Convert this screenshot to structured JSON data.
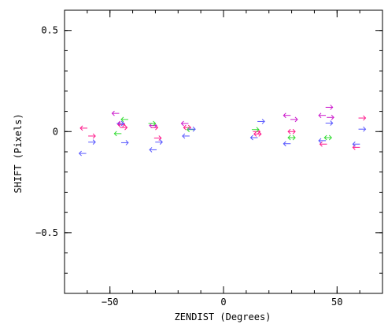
{
  "chart_data": {
    "type": "scatter",
    "marker": "arrow",
    "xlabel": "ZENDIST (Degrees)",
    "ylabel": "SHIFT (Pixels)",
    "xlim": [
      -70,
      70
    ],
    "ylim": [
      -0.8,
      0.6
    ],
    "xticks": [
      -50,
      0,
      50
    ],
    "xtick_labels": [
      "−50",
      "0",
      "50"
    ],
    "yticks": [
      -0.5,
      0,
      0.5
    ],
    "ytick_labels": [
      "−0.5",
      "0",
      "0.5"
    ],
    "x_minor_step": 10,
    "y_minor_step": 0.1,
    "grid": false,
    "series": [
      {
        "color": "#ff1a8c",
        "points": [
          {
            "x": -61.5,
            "y": 0.017,
            "dir": "left"
          },
          {
            "x": -58,
            "y": -0.022,
            "dir": "right"
          },
          {
            "x": -45,
            "y": 0.035,
            "dir": "both"
          },
          {
            "x": -44,
            "y": 0.02,
            "dir": "right"
          },
          {
            "x": -30.5,
            "y": 0.02,
            "dir": "right"
          },
          {
            "x": -29,
            "y": -0.032,
            "dir": "right"
          },
          {
            "x": -16,
            "y": 0.02,
            "dir": "both"
          },
          {
            "x": 14.5,
            "y": 0.0,
            "dir": "right"
          },
          {
            "x": 15,
            "y": -0.012,
            "dir": "both"
          },
          {
            "x": 30,
            "y": 0.0,
            "dir": "both"
          },
          {
            "x": 44,
            "y": -0.062,
            "dir": "left"
          },
          {
            "x": 58.5,
            "y": -0.078,
            "dir": "left"
          },
          {
            "x": 61,
            "y": 0.067,
            "dir": "right"
          }
        ]
      },
      {
        "color": "#cc1acc",
        "points": [
          {
            "x": -47.5,
            "y": 0.09,
            "dir": "left"
          },
          {
            "x": -45,
            "y": 0.04,
            "dir": "left"
          },
          {
            "x": -31,
            "y": 0.03,
            "dir": "both"
          },
          {
            "x": -17,
            "y": 0.04,
            "dir": "left"
          },
          {
            "x": 28,
            "y": 0.08,
            "dir": "left"
          },
          {
            "x": 31,
            "y": 0.06,
            "dir": "right"
          },
          {
            "x": 43.5,
            "y": 0.08,
            "dir": "left"
          },
          {
            "x": 46.5,
            "y": 0.12,
            "dir": "right"
          },
          {
            "x": 47,
            "y": 0.07,
            "dir": "right"
          }
        ]
      },
      {
        "color": "#33dd33",
        "points": [
          {
            "x": -46.5,
            "y": -0.01,
            "dir": "left"
          },
          {
            "x": -43.5,
            "y": 0.06,
            "dir": "left"
          },
          {
            "x": -31.5,
            "y": 0.04,
            "dir": "right"
          },
          {
            "x": -14.5,
            "y": 0.01,
            "dir": "left"
          },
          {
            "x": 14,
            "y": 0.01,
            "dir": "right"
          },
          {
            "x": 30,
            "y": -0.03,
            "dir": "both"
          },
          {
            "x": 46,
            "y": -0.03,
            "dir": "both"
          }
        ]
      },
      {
        "color": "#5555ff",
        "points": [
          {
            "x": -62,
            "y": -0.108,
            "dir": "left"
          },
          {
            "x": -58,
            "y": -0.052,
            "dir": "right"
          },
          {
            "x": -45.5,
            "y": 0.04,
            "dir": "right"
          },
          {
            "x": -43.5,
            "y": -0.055,
            "dir": "right"
          },
          {
            "x": -31,
            "y": -0.09,
            "dir": "left"
          },
          {
            "x": -28.5,
            "y": -0.052,
            "dir": "right"
          },
          {
            "x": -16.5,
            "y": -0.022,
            "dir": "left"
          },
          {
            "x": -14,
            "y": 0.012,
            "dir": "right"
          },
          {
            "x": 16.5,
            "y": 0.05,
            "dir": "right"
          },
          {
            "x": 13.5,
            "y": -0.03,
            "dir": "left"
          },
          {
            "x": 28,
            "y": -0.06,
            "dir": "left"
          },
          {
            "x": 43.5,
            "y": -0.045,
            "dir": "left"
          },
          {
            "x": 46.5,
            "y": 0.042,
            "dir": "right"
          },
          {
            "x": 58.5,
            "y": -0.062,
            "dir": "left"
          },
          {
            "x": 61,
            "y": 0.012,
            "dir": "right"
          }
        ]
      }
    ]
  }
}
